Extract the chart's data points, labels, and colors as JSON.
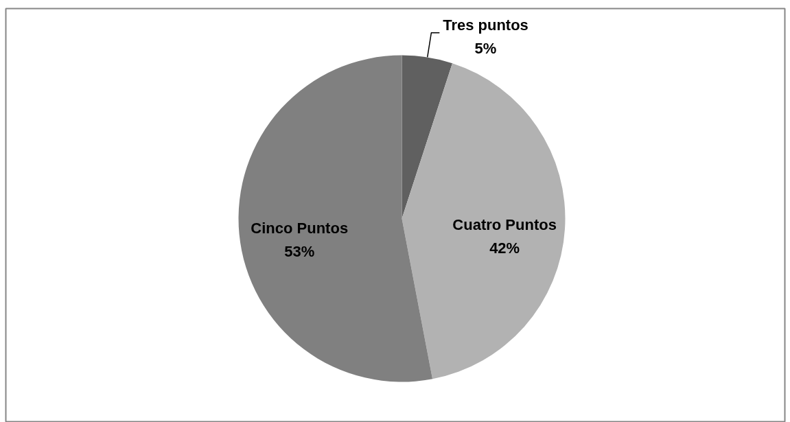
{
  "chart_data": {
    "type": "pie",
    "categories": [
      "Tres puntos",
      "Cuatro Puntos",
      "Cinco Puntos"
    ],
    "values": [
      5,
      42,
      53
    ],
    "colors": [
      "#606060",
      "#b2b2b2",
      "#808080"
    ],
    "value_labels": [
      "5%",
      "42%",
      "53%"
    ]
  }
}
